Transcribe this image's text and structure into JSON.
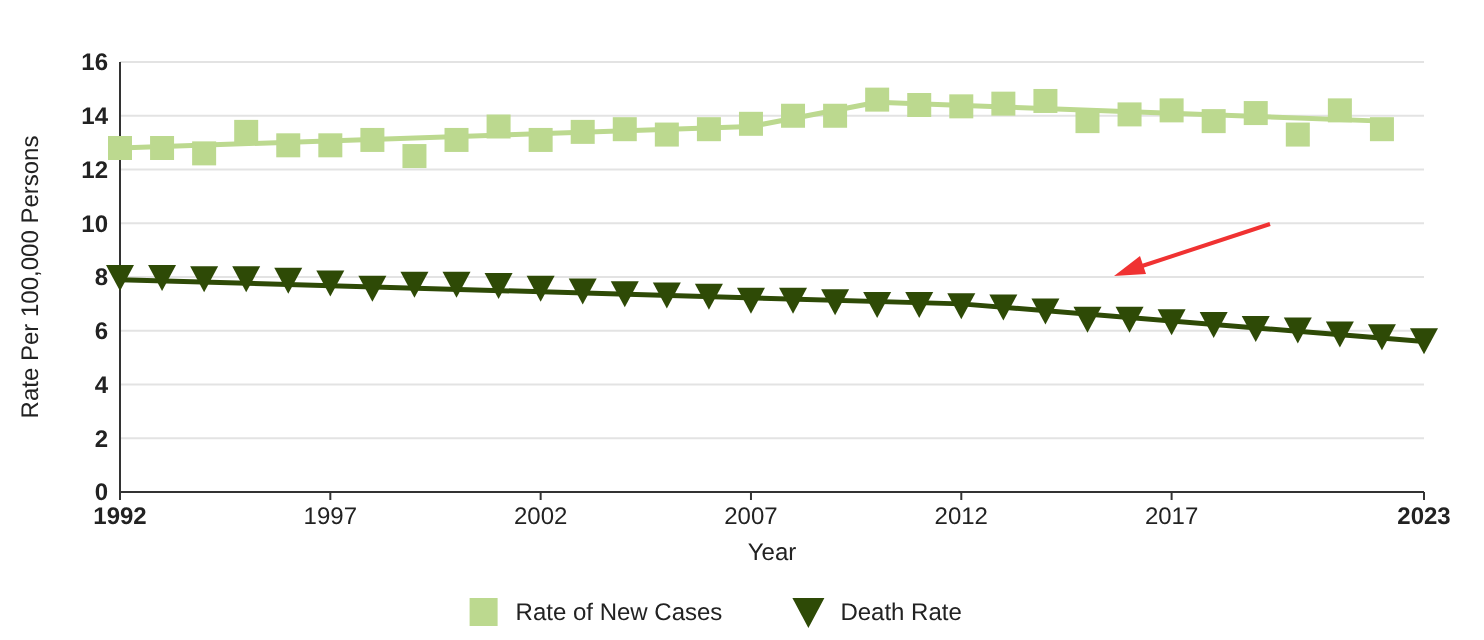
{
  "chart_data": {
    "type": "scatter",
    "xlabel": "Year",
    "ylabel": "Rate Per 100,000 Persons",
    "xlim": [
      1992,
      2023
    ],
    "xticks": [
      1992,
      1997,
      2002,
      2007,
      2012,
      2017,
      2023
    ],
    "ylim": [
      0,
      16
    ],
    "yticks": [
      0,
      2,
      4,
      6,
      8,
      10,
      12,
      14,
      16
    ],
    "grid": "y",
    "legend": "bottom",
    "series": [
      {
        "type": "line",
        "color": "#bcd98f",
        "marker": "none",
        "x": [
          1992,
          2007,
          2010,
          2022
        ],
        "values": [
          12.8,
          13.6,
          14.5,
          13.8
        ]
      },
      {
        "type": "line",
        "color": "#2e4a06",
        "marker": "none",
        "x": [
          1992,
          2012,
          2023
        ],
        "values": [
          7.9,
          7.0,
          5.6
        ]
      },
      {
        "name": "Rate of New Cases",
        "color": "#bcd98f",
        "marker": "square",
        "x": [
          1992,
          1993,
          1994,
          1995,
          1996,
          1997,
          1998,
          1999,
          2000,
          2001,
          2002,
          2003,
          2004,
          2005,
          2006,
          2007,
          2008,
          2009,
          2010,
          2011,
          2012,
          2013,
          2014,
          2015,
          2016,
          2017,
          2018,
          2019,
          2020,
          2021,
          2022
        ],
        "values": [
          12.8,
          12.8,
          12.6,
          13.4,
          12.9,
          12.9,
          13.1,
          12.5,
          13.1,
          13.6,
          13.1,
          13.4,
          13.5,
          13.3,
          13.5,
          13.7,
          14.0,
          14.0,
          14.6,
          14.4,
          14.35,
          14.45,
          14.55,
          13.8,
          14.05,
          14.2,
          13.8,
          14.1,
          13.3,
          14.2,
          13.5
        ]
      },
      {
        "name": "Death Rate",
        "color": "#2e4a06",
        "marker": "triangle-down",
        "x": [
          1992,
          1993,
          1994,
          1995,
          1996,
          1997,
          1998,
          1999,
          2000,
          2001,
          2002,
          2003,
          2004,
          2005,
          2006,
          2007,
          2008,
          2009,
          2010,
          2011,
          2012,
          2013,
          2014,
          2015,
          2016,
          2017,
          2018,
          2019,
          2020,
          2021,
          2022,
          2023
        ],
        "values": [
          8.0,
          8.0,
          7.95,
          7.95,
          7.9,
          7.8,
          7.6,
          7.75,
          7.75,
          7.7,
          7.6,
          7.5,
          7.4,
          7.35,
          7.3,
          7.15,
          7.15,
          7.1,
          7.0,
          7.0,
          6.95,
          6.9,
          6.75,
          6.45,
          6.45,
          6.35,
          6.25,
          6.1,
          6.05,
          5.9,
          5.8,
          5.65
        ]
      }
    ]
  }
}
